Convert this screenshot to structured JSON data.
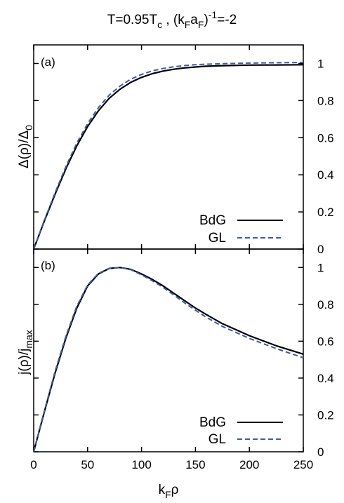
{
  "figure": {
    "title_parts": {
      "t_eq": "T=0.95T",
      "c_sub": "c",
      "sep": " , (k",
      "f_sub1": "F",
      "a": "a",
      "f_sub2": "F",
      "paren": ")",
      "exp": "-1",
      "tail": "=-2"
    },
    "colors": {
      "bdg": "#000000",
      "gl": "#3d5aa8",
      "frame": "#000000"
    }
  },
  "chart_data": [
    {
      "type": "line",
      "panel_label": "(a)",
      "ylabel_parts": {
        "main": "Δ(ρ)/Δ",
        "sub": "0"
      },
      "y_axis_side": "right",
      "xlim": [
        0,
        250
      ],
      "ylim": [
        0,
        1.1
      ],
      "yticks": [
        "0",
        "0.2",
        "0.4",
        "0.6",
        "0.8",
        "1"
      ],
      "legend": {
        "position": "bottom-right",
        "entries": [
          "BdG",
          "GL"
        ]
      },
      "series": [
        {
          "name": "BdG",
          "style": "solid",
          "x": [
            0,
            10,
            20,
            30,
            40,
            50,
            60,
            70,
            80,
            90,
            100,
            110,
            120,
            130,
            140,
            150,
            160,
            175,
            200,
            225,
            250
          ],
          "y": [
            0,
            0.153,
            0.298,
            0.435,
            0.556,
            0.66,
            0.745,
            0.812,
            0.861,
            0.898,
            0.925,
            0.945,
            0.959,
            0.969,
            0.976,
            0.981,
            0.985,
            0.988,
            0.991,
            0.992,
            0.993
          ]
        },
        {
          "name": "GL",
          "style": "dashed",
          "x": [
            0,
            10,
            20,
            30,
            40,
            50,
            60,
            70,
            80,
            90,
            100,
            110,
            120,
            130,
            140,
            150,
            160,
            175,
            200,
            225,
            250
          ],
          "y": [
            0,
            0.157,
            0.306,
            0.446,
            0.571,
            0.676,
            0.762,
            0.829,
            0.878,
            0.915,
            0.941,
            0.96,
            0.973,
            0.982,
            0.989,
            0.993,
            0.996,
            0.999,
            1.002,
            1.004,
            1.005
          ]
        }
      ]
    },
    {
      "type": "line",
      "panel_label": "(b)",
      "ylabel_parts": {
        "main": "j(ρ)/j",
        "sub": "max"
      },
      "y_axis_side": "right",
      "xlim": [
        0,
        250
      ],
      "ylim": [
        0,
        1.1
      ],
      "xticks": [
        "0",
        "50",
        "100",
        "150",
        "200",
        "250"
      ],
      "xlabel_parts": {
        "main": "k",
        "sub": "F",
        "tail": "ρ"
      },
      "yticks": [
        "0",
        "0.2",
        "0.4",
        "0.6",
        "0.8",
        "1"
      ],
      "legend": {
        "position": "bottom-right",
        "entries": [
          "BdG",
          "GL"
        ]
      },
      "series": [
        {
          "name": "BdG",
          "style": "solid",
          "x": [
            0,
            10,
            20,
            30,
            40,
            50,
            60,
            70,
            80,
            90,
            100,
            110,
            120,
            130,
            140,
            150,
            160,
            175,
            200,
            225,
            250
          ],
          "y": [
            0,
            0.22,
            0.43,
            0.62,
            0.78,
            0.9,
            0.965,
            0.995,
            1.0,
            0.99,
            0.965,
            0.935,
            0.9,
            0.86,
            0.82,
            0.78,
            0.745,
            0.695,
            0.63,
            0.575,
            0.53
          ]
        },
        {
          "name": "GL",
          "style": "dashed",
          "x": [
            0,
            10,
            20,
            30,
            40,
            50,
            60,
            70,
            80,
            90,
            100,
            110,
            120,
            130,
            140,
            150,
            160,
            175,
            200,
            225,
            250
          ],
          "y": [
            0,
            0.225,
            0.44,
            0.63,
            0.79,
            0.905,
            0.968,
            0.995,
            1.0,
            0.988,
            0.96,
            0.928,
            0.892,
            0.85,
            0.808,
            0.768,
            0.73,
            0.68,
            0.615,
            0.56,
            0.51
          ]
        }
      ]
    }
  ]
}
